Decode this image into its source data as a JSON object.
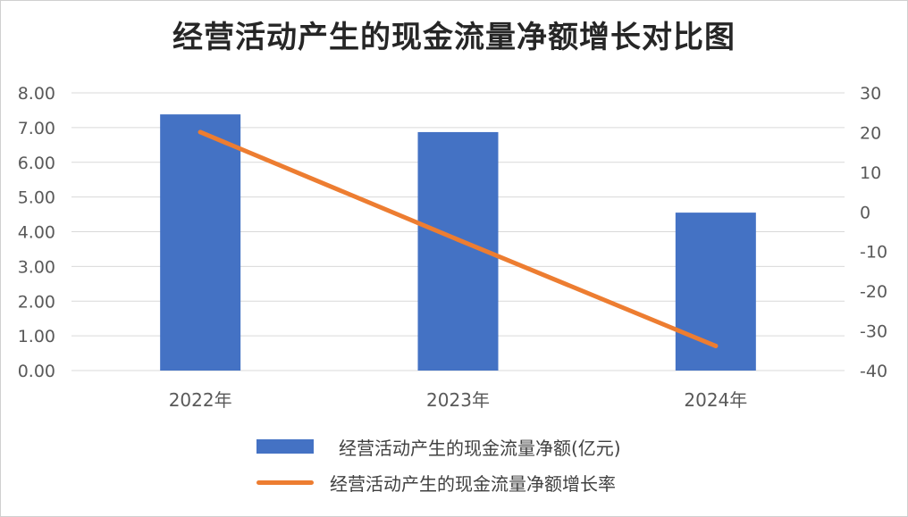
{
  "chart_data": {
    "type": "bar+line",
    "title": "经营活动产生的现金流量净额增长对比图",
    "categories": [
      "2022年",
      "2023年",
      "2024年"
    ],
    "series": [
      {
        "name": "经营活动产生的现金流量净额(亿元)",
        "type": "bar",
        "axis": "left",
        "values": [
          7.38,
          6.87,
          4.55
        ],
        "color": "#4472C4"
      },
      {
        "name": "经营活动产生的现金流量净额增长率",
        "type": "line",
        "axis": "right",
        "values": [
          20.1,
          -7.0,
          -33.8
        ],
        "color": "#ED7D31"
      }
    ],
    "y_left": {
      "lim": [
        0,
        8
      ],
      "ticks": [
        "0.00",
        "1.00",
        "2.00",
        "3.00",
        "4.00",
        "5.00",
        "6.00",
        "7.00",
        "8.00"
      ]
    },
    "y_right": {
      "lim": [
        -40,
        30
      ],
      "ticks": [
        "-40",
        "-30",
        "-20",
        "-10",
        "0",
        "10",
        "20",
        "30"
      ]
    },
    "grid": true,
    "legend_position": "bottom"
  }
}
